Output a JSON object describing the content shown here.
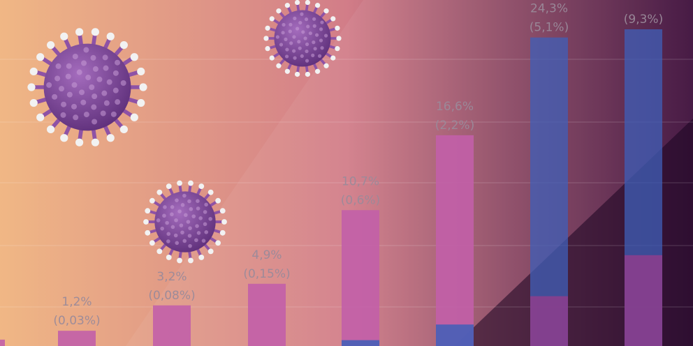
{
  "chart_data": {
    "type": "bar",
    "title": "",
    "xlabel": "",
    "ylabel": "",
    "ylim": [
      0,
      30
    ],
    "grid": true,
    "legend": "none",
    "categories": [
      "",
      "",
      "",
      "",
      "",
      "",
      "",
      ""
    ],
    "series": [
      {
        "values": [
          0.5,
          1.2,
          3.2,
          4.9,
          10.7,
          16.6,
          24.3,
          28.0
        ]
      },
      {
        "values": [
          0.01,
          0.03,
          0.08,
          0.15,
          0.6,
          2.2,
          5.1,
          9.3
        ]
      }
    ],
    "data_labels": [
      {
        "primary": "",
        "secondary": ""
      },
      {
        "primary": "1,2%",
        "secondary": "(0,03%)"
      },
      {
        "primary": "3,2%",
        "secondary": "(0,08%)"
      },
      {
        "primary": "4,9%",
        "secondary": "(0,15%)"
      },
      {
        "primary": "10,7%",
        "secondary": "(0,6%)"
      },
      {
        "primary": "16,6%",
        "secondary": "(2,2%)"
      },
      {
        "primary": "24,3%",
        "secondary": "(5,1%)"
      },
      {
        "primary": "",
        "secondary": "(9,3%)"
      }
    ],
    "colors": {
      "bar_top": "#c25fa8",
      "bar_bottom": "#3f5fb8",
      "label": "#9a8a9a",
      "bg_left": "#f0b785",
      "bg_mid": "#d27d88",
      "bg_right": "#3c0d3a",
      "virus": "#8e52a6",
      "virus_tip": "#f2f2f2"
    }
  }
}
